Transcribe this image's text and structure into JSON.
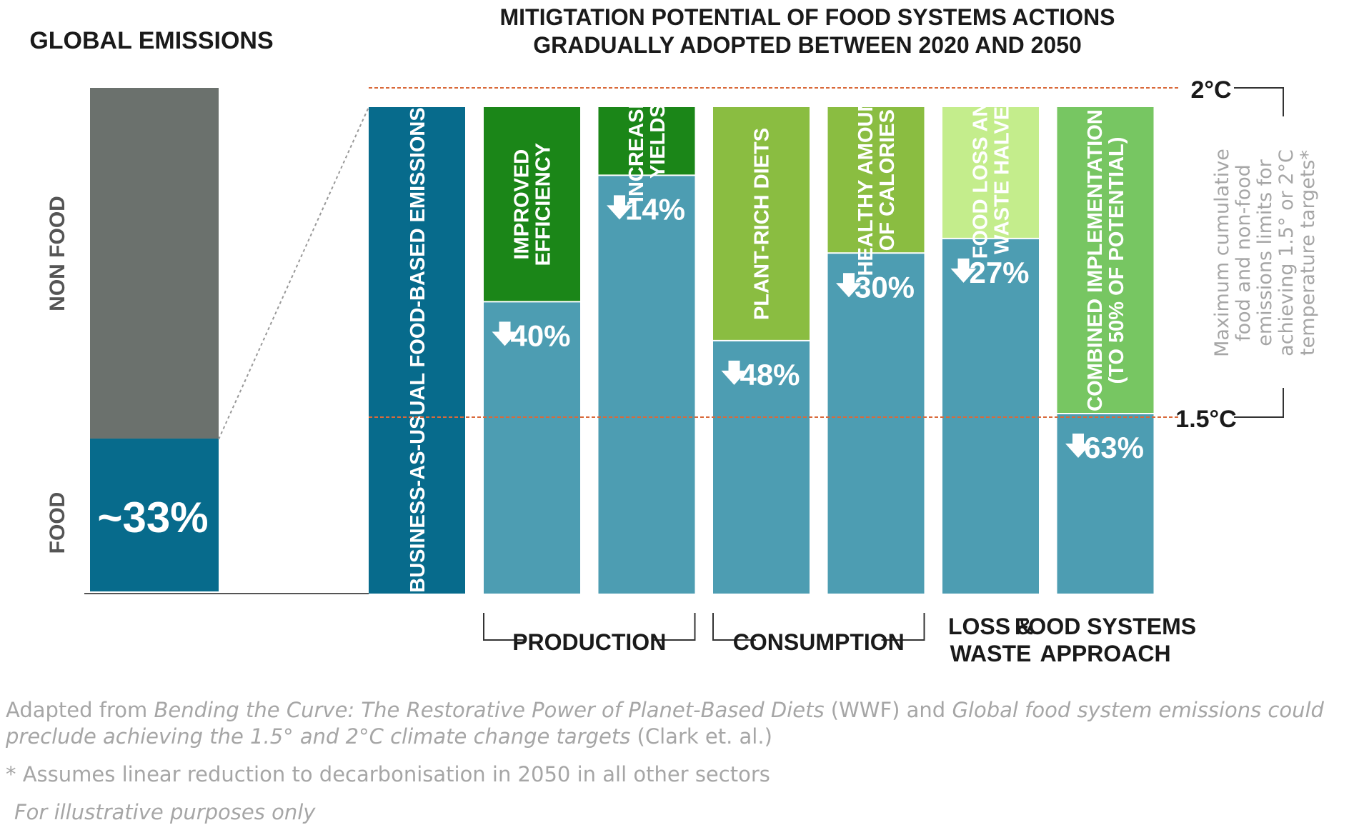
{
  "left_panel": {
    "title": "GLOBAL EMISSIONS",
    "non_food_label": "NON FOOD",
    "food_label": "FOOD",
    "food_share_label": "~33%",
    "food_share_fraction": 0.33
  },
  "main_title": {
    "line1": "MITIGTATION POTENTIAL OF FOOD SYSTEMS ACTIONS",
    "line2": "GRADUALLY ADOPTED BETWEEN 2020 AND 2050"
  },
  "thresholds": {
    "two_deg_label": "2°C",
    "one_five_label": "1.5°C",
    "bracket_text": [
      "Maximum cumulative",
      "food and non-food",
      "emissions limits for",
      "achieving 1.5° or 2°C",
      "temperature targets*"
    ]
  },
  "chart_data": {
    "type": "bar",
    "baseline_label": "BUSINESS-AS-USUAL FOOD-BASED EMISSIONS",
    "bars": [
      {
        "label": [
          "IMPROVED",
          "EFFICIENCY"
        ],
        "reduction_pct": 40,
        "reduction_label": "40%"
      },
      {
        "label": [
          "INCREASED",
          "YIELDS"
        ],
        "reduction_pct": 14,
        "reduction_label": "14%"
      },
      {
        "label": [
          "PLANT-RICH DIETS"
        ],
        "reduction_pct": 48,
        "reduction_label": "48%"
      },
      {
        "label": [
          "HEALTHY AMOUNT",
          "OF CALORIES"
        ],
        "reduction_pct": 30,
        "reduction_label": "30%"
      },
      {
        "label": [
          "FOOD LOSS AND",
          "WASTE HALVED"
        ],
        "reduction_pct": 27,
        "reduction_label": "27%"
      },
      {
        "label": [
          "COMBINED IMPLEMENTATION",
          "(TO 50% OF POTENTIAL)"
        ],
        "reduction_pct": 63,
        "reduction_label": "63%"
      }
    ],
    "groups": [
      {
        "label": [
          "PRODUCTION"
        ],
        "bars": [
          0,
          1
        ]
      },
      {
        "label": [
          "CONSUMPTION"
        ],
        "bars": [
          2,
          3
        ]
      },
      {
        "label": [
          "LOSS &",
          "WASTE"
        ],
        "bars": [
          4
        ]
      },
      {
        "label": [
          "FOOD SYSTEMS",
          "APPROACH"
        ],
        "bars": [
          5
        ]
      }
    ]
  },
  "colors": {
    "non_food": "#6b716d",
    "food": "#076b8c",
    "baseline": "#076b8c",
    "remaining": "#4d9db2",
    "reductions": [
      "#1b8618",
      "#1b8618",
      "#8abd41",
      "#8abd41",
      "#c4ed8c",
      "#77c662"
    ],
    "threshold_line": "#d9693a"
  },
  "footnotes": {
    "line1_a": "Adapted from ",
    "line1_b": "Bending the Curve: The Restorative Power of Planet-Based Diets",
    "line1_c": " (WWF) and ",
    "line1_d": "Global food system emissions could",
    "line2_a": "preclude achieving the 1.5° and 2°C climate change targets",
    "line2_b": " (Clark et. al.)",
    "line3": "* Assumes linear reduction to decarbonisation in 2050 in all other sectors",
    "line4": "For illustrative purposes only"
  }
}
